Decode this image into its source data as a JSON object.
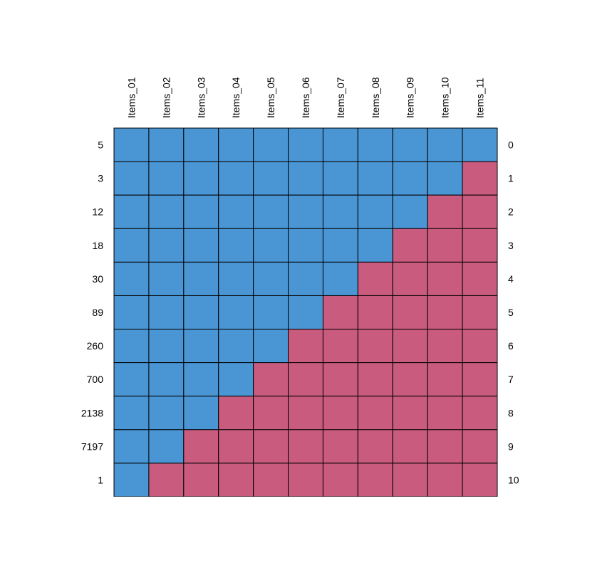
{
  "chart_data": {
    "type": "heatmap",
    "title": "",
    "xlabel": "",
    "ylabel": "",
    "columns": [
      "Items_01",
      "Items_02",
      "Items_03",
      "Items_04",
      "Items_05",
      "Items_06",
      "Items_07",
      "Items_08",
      "Items_09",
      "Items_10",
      "Items_11"
    ],
    "row_counts": [
      "5",
      "3",
      "12",
      "18",
      "30",
      "89",
      "260",
      "700",
      "2138",
      "7197",
      "1"
    ],
    "row_missing_totals": [
      "0",
      "1",
      "2",
      "3",
      "4",
      "5",
      "6",
      "7",
      "8",
      "9",
      "10"
    ],
    "matrix": [
      [
        1,
        1,
        1,
        1,
        1,
        1,
        1,
        1,
        1,
        1,
        1
      ],
      [
        1,
        1,
        1,
        1,
        1,
        1,
        1,
        1,
        1,
        1,
        0
      ],
      [
        1,
        1,
        1,
        1,
        1,
        1,
        1,
        1,
        1,
        0,
        0
      ],
      [
        1,
        1,
        1,
        1,
        1,
        1,
        1,
        1,
        0,
        0,
        0
      ],
      [
        1,
        1,
        1,
        1,
        1,
        1,
        1,
        0,
        0,
        0,
        0
      ],
      [
        1,
        1,
        1,
        1,
        1,
        1,
        0,
        0,
        0,
        0,
        0
      ],
      [
        1,
        1,
        1,
        1,
        1,
        0,
        0,
        0,
        0,
        0,
        0
      ],
      [
        1,
        1,
        1,
        1,
        0,
        0,
        0,
        0,
        0,
        0,
        0
      ],
      [
        1,
        1,
        1,
        0,
        0,
        0,
        0,
        0,
        0,
        0,
        0
      ],
      [
        1,
        1,
        0,
        0,
        0,
        0,
        0,
        0,
        0,
        0,
        0
      ],
      [
        1,
        0,
        0,
        0,
        0,
        0,
        0,
        0,
        0,
        0,
        0
      ]
    ],
    "colors": {
      "observed": "#4a96d4",
      "missing": "#c95b7e",
      "grid": "#000000"
    },
    "legend": "none"
  }
}
